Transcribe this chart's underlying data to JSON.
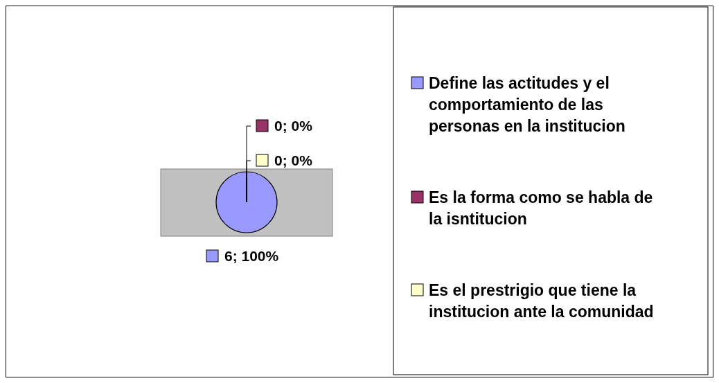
{
  "chart_data": {
    "type": "pie",
    "categories": [
      "Define las actitudes y el comportamiento de las personas en la institucion",
      "Es la forma como se habla de la isntitucion",
      "Es el prestrigio que tiene la institucion ante la comunidad"
    ],
    "values": [
      6,
      0,
      0
    ],
    "colors": [
      "#9999ff",
      "#993366",
      "#ffffcc"
    ],
    "value_labels": [
      "6; 100%",
      "0; 0%",
      "0; 0%"
    ],
    "legend": "right"
  }
}
